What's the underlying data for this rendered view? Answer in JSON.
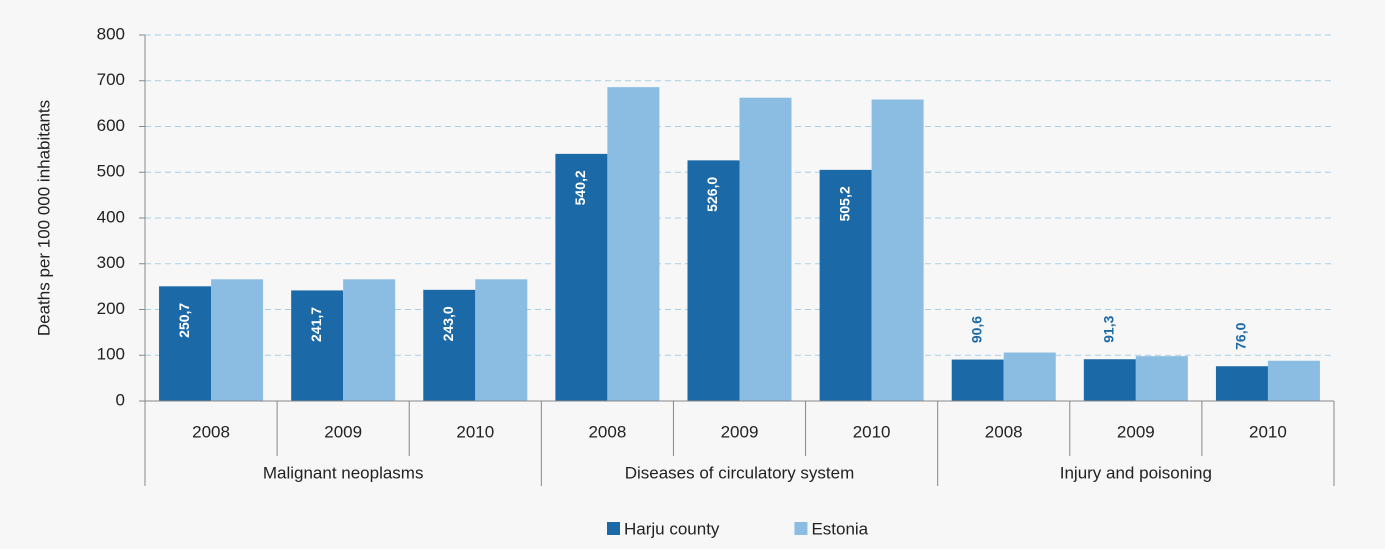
{
  "chart_data": {
    "type": "bar",
    "y_label": "Deaths per 100 000 inhabitants",
    "groups": [
      {
        "name": "Malignant neoplasms",
        "categories": [
          "2008",
          "2009",
          "2010"
        ]
      },
      {
        "name": "Diseases of circulatory system",
        "categories": [
          "2008",
          "2009",
          "2010"
        ]
      },
      {
        "name": "Injury and poisoning",
        "categories": [
          "2008",
          "2009",
          "2010"
        ]
      }
    ],
    "series": [
      {
        "name": "Harju county",
        "color": "#1b69a6",
        "values": [
          250.7,
          241.7,
          243.0,
          540.2,
          526.0,
          505.2,
          90.6,
          91.3,
          76.0
        ],
        "value_labels": [
          "250,7",
          "241,7",
          "243,0",
          "540,2",
          "526,0",
          "505,2",
          "90,6",
          "91,3",
          "76,0"
        ]
      },
      {
        "name": "Estonia",
        "color": "#8bbde2",
        "values": [
          266,
          266,
          266,
          686,
          663,
          659,
          106,
          98,
          88
        ]
      }
    ],
    "ylim": [
      0,
      800
    ],
    "yticks": [
      0,
      100,
      200,
      300,
      400,
      500,
      600,
      700,
      800
    ],
    "grid": true,
    "legend": "bottom"
  }
}
